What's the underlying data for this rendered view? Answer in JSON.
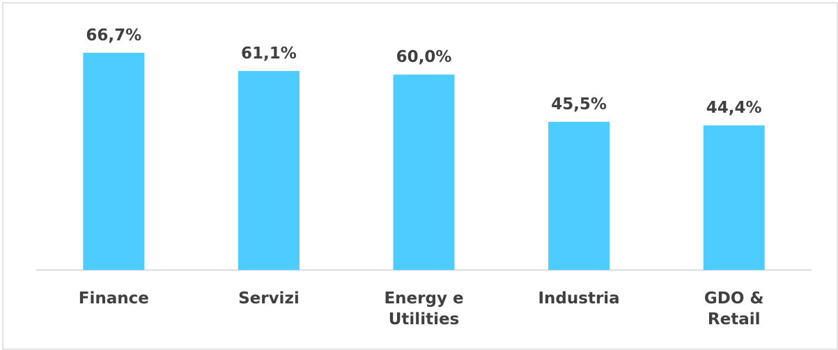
{
  "chart_data": {
    "type": "bar",
    "categories": [
      "Finance",
      "Servizi",
      "Energy e Utilities",
      "Industria",
      "GDO & Retail"
    ],
    "values": [
      66.7,
      61.1,
      60.0,
      45.5,
      44.4
    ],
    "value_labels": [
      "66,7%",
      "61,1%",
      "60,0%",
      "45,5%",
      "44,4%"
    ],
    "color": "#4dcdff"
  }
}
